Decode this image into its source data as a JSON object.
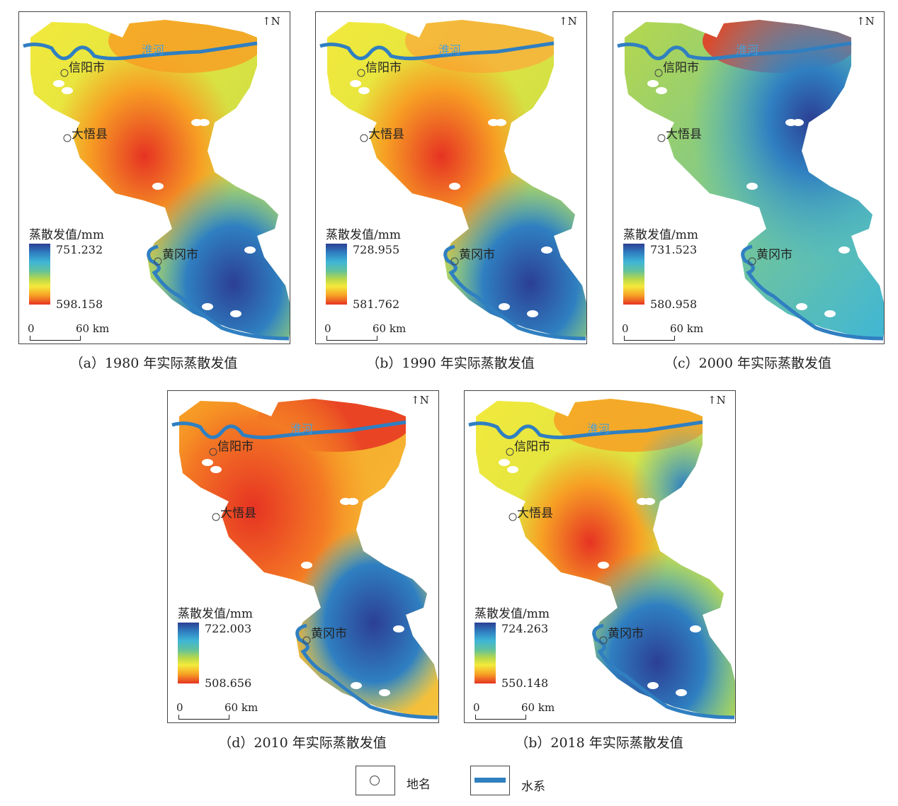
{
  "legend_title": "蒸散发值/mm",
  "scale_zero": "0",
  "scale_label": "60 km",
  "north_label": "N",
  "places": {
    "xinyang": "信阳市",
    "dawu": "大悟县",
    "huanggang": "黄冈市",
    "huaihe": "淮河"
  },
  "colors": {
    "high": "#2c3f93",
    "low": "#e63323",
    "river": "#2f7fc1"
  },
  "panels": [
    {
      "id": "a",
      "caption": "（a）1980 年实际蒸散发值",
      "max": "751.232",
      "min": "598.158"
    },
    {
      "id": "b",
      "caption": "（b）1990 年实际蒸散发值",
      "max": "728.955",
      "min": "581.762"
    },
    {
      "id": "c",
      "caption": "（c）2000 年实际蒸散发值",
      "max": "731.523",
      "min": "580.958"
    },
    {
      "id": "d",
      "caption": "（d）2010 年实际蒸散发值",
      "max": "722.003",
      "min": "508.656"
    },
    {
      "id": "e",
      "caption": "（b）2018 年实际蒸散发值",
      "max": "724.263",
      "min": "550.148"
    }
  ],
  "key": {
    "place_label": "地名",
    "water_label": "水系"
  }
}
